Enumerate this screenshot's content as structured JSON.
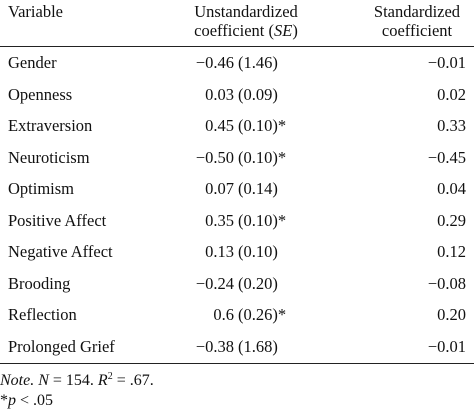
{
  "header": {
    "variable": "Variable",
    "unstandardized_line1": "Unstandardized",
    "unstandardized_line2_prefix": "coefficient (",
    "unstandardized_line2_se": "SE",
    "unstandardized_line2_suffix": ")",
    "standardized_line1": "Standardized",
    "standardized_line2": "coefficient"
  },
  "rows": [
    {
      "variable": "Gender",
      "b": "−0.46",
      "se": "(1.46)",
      "beta": "−0.01"
    },
    {
      "variable": "Openness",
      "b": "0.03",
      "se": "(0.09)",
      "beta": "0.02"
    },
    {
      "variable": "Extraversion",
      "b": "0.45",
      "se": "(0.10)*",
      "beta": "0.33"
    },
    {
      "variable": "Neuroticism",
      "b": "−0.50",
      "se": "(0.10)*",
      "beta": "−0.45"
    },
    {
      "variable": "Optimism",
      "b": "0.07",
      "se": "(0.14)",
      "beta": "0.04"
    },
    {
      "variable": "Positive Affect",
      "b": "0.35",
      "se": "(0.10)*",
      "beta": "0.29"
    },
    {
      "variable": "Negative Affect",
      "b": "0.13",
      "se": "(0.10)",
      "beta": "0.12"
    },
    {
      "variable": "Brooding",
      "b": "−0.24",
      "se": "(0.20)",
      "beta": "−0.08"
    },
    {
      "variable": "Reflection",
      "b": "0.6",
      "se": "(0.26)*",
      "beta": "0.20"
    },
    {
      "variable": "Prolonged Grief",
      "b": "−0.38",
      "se": "(1.68)",
      "beta": "−0.01"
    }
  ],
  "note": {
    "label": "Note.",
    "n_label": "N",
    "n_value": " = 154. ",
    "r_label": "R",
    "r_sup": "2",
    "r_value": " = .67.",
    "sig_star": "*",
    "sig_p": "p",
    "sig_value": " < .05"
  }
}
